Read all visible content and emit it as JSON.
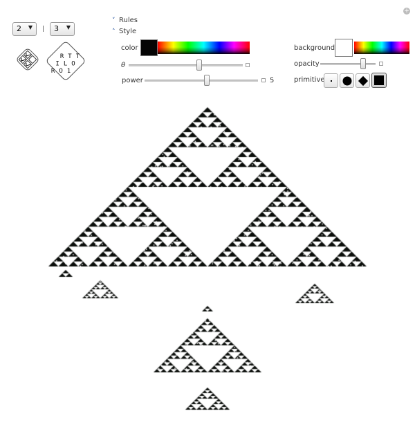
{
  "controls": {
    "dropdown_a_value": "2",
    "dropdown_b_value": "3",
    "rules_label": "Rules",
    "style_label": "Style",
    "rule_card": {
      "column1": "RTT",
      "column2": "ILO",
      "column3": "RO1"
    }
  },
  "style": {
    "color_label": "color",
    "color_value": "#000000",
    "theta_label": "θ",
    "theta_fraction": 0.62,
    "power_label": "power",
    "power_value": "5",
    "power_fraction": 0.55,
    "background_label": "background",
    "background_value": "#ffffff",
    "opacity_label": "opacity",
    "opacity_fraction": 0.78,
    "primitive_label": "primitive",
    "primitive_options": [
      "point",
      "disk",
      "diamond",
      "square"
    ],
    "primitive_selected": "square"
  },
  "fractal": {
    "description_color": "#0a0d0a"
  },
  "icons": {
    "corner": "plus-circle-icon",
    "expand": "plus-box-icon",
    "rules_toggle": "chevron-down-icon",
    "style_toggle": "chevron-up-icon"
  }
}
